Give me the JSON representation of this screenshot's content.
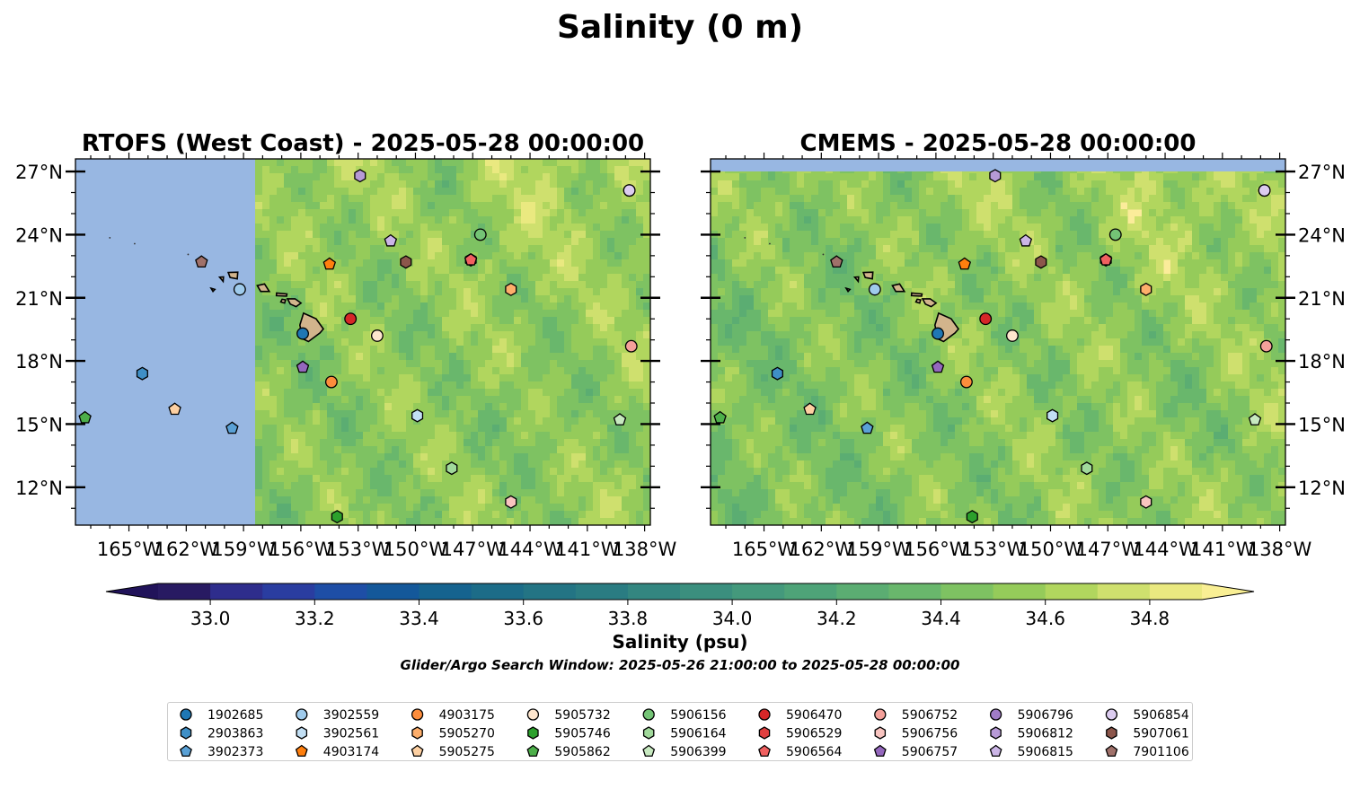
{
  "figure": {
    "suptitle": "Salinity (0 m)",
    "subtitle": "Glider/Argo Search Window: 2025-05-26 21:00:00 to 2025-05-28 00:00:00"
  },
  "colorbar": {
    "label": "Salinity (psu)",
    "min": 32.9,
    "max": 34.9,
    "step": 0.1,
    "ticks": [
      "33.0",
      "33.2",
      "33.4",
      "33.6",
      "33.8",
      "34.0",
      "34.2",
      "34.4",
      "34.6",
      "34.8"
    ],
    "extend": "both",
    "colors": [
      "#281a62",
      "#2e2d8c",
      "#2a3da0",
      "#1e4ea6",
      "#14589a",
      "#15638f",
      "#1c6c88",
      "#237484",
      "#2a7c82",
      "#338680",
      "#3b8f7e",
      "#44997c",
      "#4ea378",
      "#5bad72",
      "#69b76c",
      "#7ec262",
      "#95cb5a",
      "#b1d65e",
      "#cfe06e",
      "#eae980"
    ],
    "under_color": "#21135a",
    "over_color": "#f9ef94"
  },
  "colors": {
    "land": "#d2b48c",
    "nodata": "#98b7e2",
    "high_sal": "#fbec9a"
  },
  "chart_data": [
    {
      "type": "map",
      "title": "RTOFS (West Coast) - 2025-05-28 00:00:00",
      "lon_range": [
        -167.8,
        -137.7
      ],
      "lat_range": [
        10.2,
        27.6
      ],
      "xticks": [
        "165°W",
        "162°W",
        "159°W",
        "156°W",
        "153°W",
        "150°W",
        "147°W",
        "144°W",
        "141°W",
        "138°W"
      ],
      "yticks": [
        "27°N",
        "24°N",
        "21°N",
        "18°N",
        "15°N",
        "12°N"
      ],
      "ytick_side": "left",
      "model_domain_west_lon": -158.3,
      "floats": [
        {
          "id": "1902685",
          "lon": -155.9,
          "lat": 19.3
        },
        {
          "id": "2903863",
          "lon": -164.3,
          "lat": 17.4
        },
        {
          "id": "3902373",
          "lon": -159.6,
          "lat": 14.8
        },
        {
          "id": "3902559",
          "lon": -159.2,
          "lat": 21.4
        },
        {
          "id": "3902561",
          "lon": -149.9,
          "lat": 15.4
        },
        {
          "id": "4903174",
          "lon": -154.5,
          "lat": 22.6
        },
        {
          "id": "4903175",
          "lon": -154.4,
          "lat": 17.0
        },
        {
          "id": "5905270",
          "lon": -145.0,
          "lat": 21.4
        },
        {
          "id": "5905275",
          "lon": -162.6,
          "lat": 15.7
        },
        {
          "id": "5905732",
          "lon": -152.0,
          "lat": 19.2
        },
        {
          "id": "5905746",
          "lon": -154.1,
          "lat": 10.6
        },
        {
          "id": "5905862",
          "lon": -167.3,
          "lat": 15.3
        },
        {
          "id": "5906156",
          "lon": -146.6,
          "lat": 24.0
        },
        {
          "id": "5906164",
          "lon": -148.1,
          "lat": 12.9
        },
        {
          "id": "5906399",
          "lon": -139.3,
          "lat": 15.2
        },
        {
          "id": "5906470",
          "lon": -153.4,
          "lat": 20.0
        },
        {
          "id": "5906529",
          "lon": -147.1,
          "lat": 22.8
        },
        {
          "id": "5906564",
          "lon": -147.1,
          "lat": 22.8
        },
        {
          "id": "5906752",
          "lon": -138.7,
          "lat": 18.7
        },
        {
          "id": "5906756",
          "lon": -145.0,
          "lat": 11.3
        },
        {
          "id": "5906757",
          "lon": -155.9,
          "lat": 17.7
        },
        {
          "id": "5906796",
          "lon": -138.8,
          "lat": 26.1
        },
        {
          "id": "5906812",
          "lon": -152.9,
          "lat": 26.8
        },
        {
          "id": "5906815",
          "lon": -151.3,
          "lat": 23.7
        },
        {
          "id": "5906854",
          "lon": -138.8,
          "lat": 26.1
        },
        {
          "id": "5907061",
          "lon": -150.5,
          "lat": 22.7
        },
        {
          "id": "7901106",
          "lon": -161.2,
          "lat": 22.7
        }
      ]
    },
    {
      "type": "map",
      "title": "CMEMS - 2025-05-28 00:00:00",
      "lon_range": [
        -167.8,
        -137.7
      ],
      "lat_range": [
        10.2,
        27.6
      ],
      "xticks": [
        "165°W",
        "162°W",
        "159°W",
        "156°W",
        "153°W",
        "150°W",
        "147°W",
        "144°W",
        "141°W",
        "138°W"
      ],
      "yticks": [
        "27°N",
        "24°N",
        "21°N",
        "18°N",
        "15°N",
        "12°N"
      ],
      "ytick_side": "right",
      "model_domain_north_lat": 27.0,
      "floats": "same as RTOFS panel"
    }
  ],
  "legend": {
    "columns": 9,
    "items": [
      {
        "id": "1902685",
        "marker": "circle",
        "color": "#1f77b4"
      },
      {
        "id": "2903863",
        "marker": "hexagon",
        "color": "#3f8fc6"
      },
      {
        "id": "3902373",
        "marker": "pentagon",
        "color": "#5aa1d6"
      },
      {
        "id": "3902559",
        "marker": "circle",
        "color": "#9fcbec"
      },
      {
        "id": "3902561",
        "marker": "hexagon",
        "color": "#c2dff4"
      },
      {
        "id": "4903174",
        "marker": "pentagon",
        "color": "#ff7f0e"
      },
      {
        "id": "4903175",
        "marker": "circle",
        "color": "#fd8d3c"
      },
      {
        "id": "5905270",
        "marker": "hexagon",
        "color": "#fdae6b"
      },
      {
        "id": "5905275",
        "marker": "pentagon",
        "color": "#fdd0a2"
      },
      {
        "id": "5905732",
        "marker": "circle",
        "color": "#fee6ce"
      },
      {
        "id": "5905746",
        "marker": "hexagon",
        "color": "#2ca02c"
      },
      {
        "id": "5905862",
        "marker": "pentagon",
        "color": "#4daf4a"
      },
      {
        "id": "5906156",
        "marker": "circle",
        "color": "#74c476"
      },
      {
        "id": "5906164",
        "marker": "hexagon",
        "color": "#a1d99b"
      },
      {
        "id": "5906399",
        "marker": "pentagon",
        "color": "#c7e9c0"
      },
      {
        "id": "5906470",
        "marker": "circle",
        "color": "#d62728"
      },
      {
        "id": "5906529",
        "marker": "hexagon",
        "color": "#e04040"
      },
      {
        "id": "5906564",
        "marker": "pentagon",
        "color": "#f06060"
      },
      {
        "id": "5906752",
        "marker": "circle",
        "color": "#f4a09a"
      },
      {
        "id": "5906756",
        "marker": "hexagon",
        "color": "#f8c4c0"
      },
      {
        "id": "5906757",
        "marker": "pentagon",
        "color": "#9467bd"
      },
      {
        "id": "5906796",
        "marker": "circle",
        "color": "#a07cc6"
      },
      {
        "id": "5906812",
        "marker": "hexagon",
        "color": "#b79ad6"
      },
      {
        "id": "5906815",
        "marker": "pentagon",
        "color": "#cbb5e6"
      },
      {
        "id": "5906854",
        "marker": "circle",
        "color": "#dcccf0"
      },
      {
        "id": "5907061",
        "marker": "hexagon",
        "color": "#8c564b"
      },
      {
        "id": "7901106",
        "marker": "pentagon",
        "color": "#a0716a"
      }
    ]
  }
}
